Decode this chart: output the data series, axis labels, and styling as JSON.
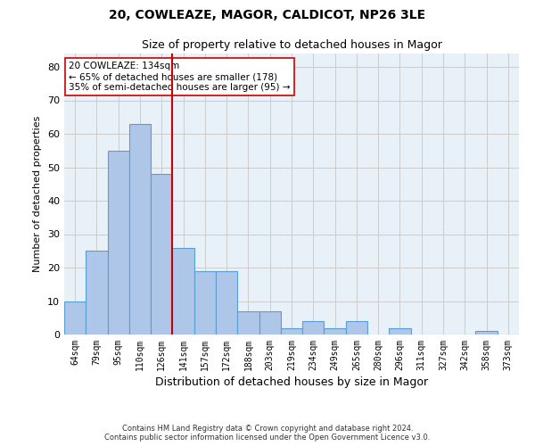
{
  "title": "20, COWLEAZE, MAGOR, CALDICOT, NP26 3LE",
  "subtitle": "Size of property relative to detached houses in Magor",
  "xlabel": "Distribution of detached houses by size in Magor",
  "ylabel": "Number of detached properties",
  "categories": [
    "64sqm",
    "79sqm",
    "95sqm",
    "110sqm",
    "126sqm",
    "141sqm",
    "157sqm",
    "172sqm",
    "188sqm",
    "203sqm",
    "219sqm",
    "234sqm",
    "249sqm",
    "265sqm",
    "280sqm",
    "296sqm",
    "311sqm",
    "327sqm",
    "342sqm",
    "358sqm",
    "373sqm"
  ],
  "values": [
    10,
    25,
    55,
    63,
    48,
    26,
    19,
    19,
    7,
    7,
    2,
    4,
    2,
    4,
    0,
    2,
    0,
    0,
    0,
    1,
    0
  ],
  "bar_color": "#aec6e8",
  "bar_edgecolor": "#5a9fd4",
  "vline_x_index": 4.5,
  "vline_color": "#cc0000",
  "annotation_text": "20 COWLEAZE: 134sqm\n← 65% of detached houses are smaller (178)\n35% of semi-detached houses are larger (95) →",
  "annotation_box_color": "white",
  "annotation_box_edgecolor": "#cc0000",
  "ylim": [
    0,
    84
  ],
  "yticks": [
    0,
    10,
    20,
    30,
    40,
    50,
    60,
    70,
    80
  ],
  "grid_color": "#cccccc",
  "bg_color": "#e8f0f8",
  "footer_line1": "Contains HM Land Registry data © Crown copyright and database right 2024.",
  "footer_line2": "Contains public sector information licensed under the Open Government Licence v3.0.",
  "title_fontsize": 10,
  "subtitle_fontsize": 9,
  "xlabel_fontsize": 9,
  "ylabel_fontsize": 8,
  "annotation_fontsize": 7.5
}
